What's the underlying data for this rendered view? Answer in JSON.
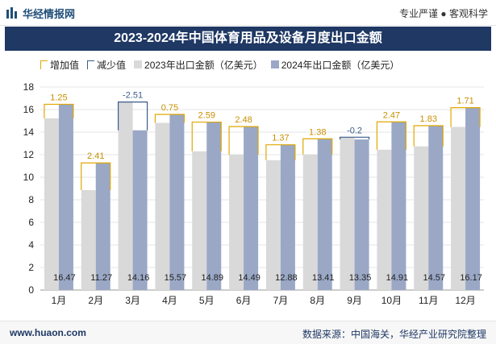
{
  "header": {
    "logo_text": "华经情报网",
    "slogan": "专业严谨 ● 客观科学"
  },
  "title": "2023-2024年中国体育用品及设备月度出口金额",
  "legend": {
    "increase": "增加值",
    "decrease": "减少值",
    "series_2023": "2023年出口金额（亿美元）",
    "series_2024": "2024年出口金额（亿美元）"
  },
  "colors": {
    "s2023": "#d9d9d9",
    "s2024": "#9aa8c6",
    "increase": "#e0a800",
    "decrease": "#3a5a8c",
    "title_bg": "#1f3864"
  },
  "chart_data": {
    "type": "bar",
    "categories": [
      "1月",
      "2月",
      "3月",
      "4月",
      "5月",
      "6月",
      "7月",
      "8月",
      "9月",
      "10月",
      "11月",
      "12月"
    ],
    "series": [
      {
        "name": "2023年出口金额（亿美元）",
        "values": [
          15.22,
          8.86,
          16.67,
          14.82,
          12.3,
          12.01,
          11.51,
          12.03,
          13.55,
          12.44,
          12.74,
          14.46
        ]
      },
      {
        "name": "2024年出口金额（亿美元）",
        "values": [
          16.47,
          11.27,
          14.16,
          15.57,
          14.89,
          14.49,
          12.88,
          13.41,
          13.35,
          14.91,
          14.57,
          16.17
        ]
      }
    ],
    "change": [
      1.25,
      2.41,
      -2.51,
      0.75,
      2.59,
      2.48,
      1.37,
      1.38,
      -0.2,
      2.47,
      1.83,
      1.71
    ],
    "change_labels": [
      "1.25",
      "2.41",
      "-2.51",
      "0.75",
      "2.59",
      "2.48",
      "1.37",
      "1.38",
      "-0.2",
      "2.47",
      "1.83",
      "1.71"
    ],
    "value_labels_2024": [
      "16.47",
      "11.27",
      "14.16",
      "15.57",
      "14.89",
      "14.49",
      "12.88",
      "13.41",
      "13.35",
      "14.91",
      "14.57",
      "16.17"
    ],
    "ylim": [
      0,
      18
    ],
    "yticks": [
      0,
      2,
      4,
      6,
      8,
      10,
      12,
      14,
      16,
      18
    ],
    "grid": true,
    "legend_position": "top"
  },
  "footer": {
    "url": "www.huaon.com",
    "source": "数据来源：中国海关，华经产业研究院整理"
  }
}
